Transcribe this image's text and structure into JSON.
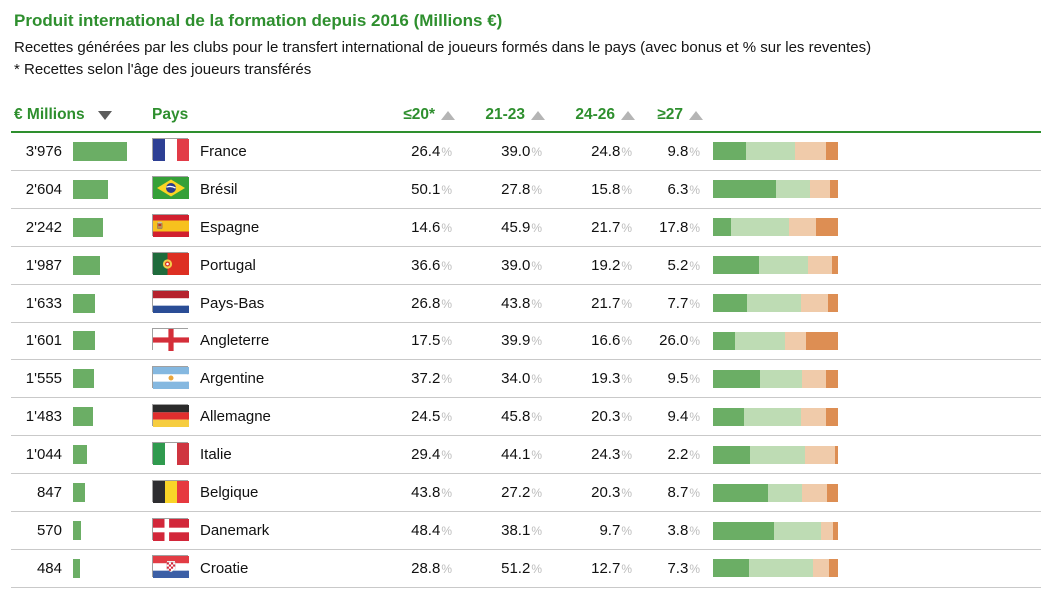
{
  "header": {
    "title": "Produit international de la formation depuis 2016 (Millions €)",
    "subtitle": "Recettes générées par les clubs pour le transfert international de joueurs formés dans le pays (avec bonus et % sur les reventes)",
    "note": "* Recettes selon l'âge des joueurs transférés"
  },
  "colors": {
    "accent_green": "#2e8f2e",
    "value_bar_green": "#6bae65",
    "stack_segments": [
      "#6bae65",
      "#bedcb4",
      "#f0cbaa",
      "#dd8e53"
    ],
    "row_separator": "#c9c9c9",
    "percent_sign_gray": "#bcbcbc",
    "sort_active_arrow": "#5c5c5c",
    "sort_inactive_arrow": "#b5b5b5"
  },
  "chart_data": {
    "type": "table",
    "title": "Produit international de la formation depuis 2016 (Millions €)",
    "columns": {
      "millions": "€ Millions",
      "pays": "Pays",
      "age_u20": "≤20*",
      "age_2123": "21-23",
      "age_2426": "24-26",
      "age_27plus": "≥27"
    },
    "sort_state": {
      "millions": "descending",
      "age_columns": "ascending"
    },
    "percent_sign": "%",
    "age_groups": [
      "≤20*",
      "21-23",
      "24-26",
      "≥27"
    ],
    "rows": [
      {
        "value_label": "3'976",
        "value": 3976,
        "country": "France",
        "flag": "fr",
        "ages": [
          26.4,
          39.0,
          24.8,
          9.8
        ]
      },
      {
        "value_label": "2'604",
        "value": 2604,
        "country": "Brésil",
        "flag": "br",
        "ages": [
          50.1,
          27.8,
          15.8,
          6.3
        ]
      },
      {
        "value_label": "2'242",
        "value": 2242,
        "country": "Espagne",
        "flag": "es",
        "ages": [
          14.6,
          45.9,
          21.7,
          17.8
        ]
      },
      {
        "value_label": "1'987",
        "value": 1987,
        "country": "Portugal",
        "flag": "pt",
        "ages": [
          36.6,
          39.0,
          19.2,
          5.2
        ]
      },
      {
        "value_label": "1'633",
        "value": 1633,
        "country": "Pays-Bas",
        "flag": "nl",
        "ages": [
          26.8,
          43.8,
          21.7,
          7.7
        ]
      },
      {
        "value_label": "1'601",
        "value": 1601,
        "country": "Angleterre",
        "flag": "en",
        "ages": [
          17.5,
          39.9,
          16.6,
          26.0
        ]
      },
      {
        "value_label": "1'555",
        "value": 1555,
        "country": "Argentine",
        "flag": "ar",
        "ages": [
          37.2,
          34.0,
          19.3,
          9.5
        ]
      },
      {
        "value_label": "1'483",
        "value": 1483,
        "country": "Allemagne",
        "flag": "de",
        "ages": [
          24.5,
          45.8,
          20.3,
          9.4
        ]
      },
      {
        "value_label": "1'044",
        "value": 1044,
        "country": "Italie",
        "flag": "it",
        "ages": [
          29.4,
          44.1,
          24.3,
          2.2
        ]
      },
      {
        "value_label": "847",
        "value": 847,
        "country": "Belgique",
        "flag": "be",
        "ages": [
          43.8,
          27.2,
          20.3,
          8.7
        ]
      },
      {
        "value_label": "570",
        "value": 570,
        "country": "Danemark",
        "flag": "dk",
        "ages": [
          48.4,
          38.1,
          9.7,
          3.8
        ]
      },
      {
        "value_label": "484",
        "value": 484,
        "country": "Croatie",
        "flag": "hr",
        "ages": [
          28.8,
          51.2,
          12.7,
          7.3
        ]
      }
    ]
  }
}
